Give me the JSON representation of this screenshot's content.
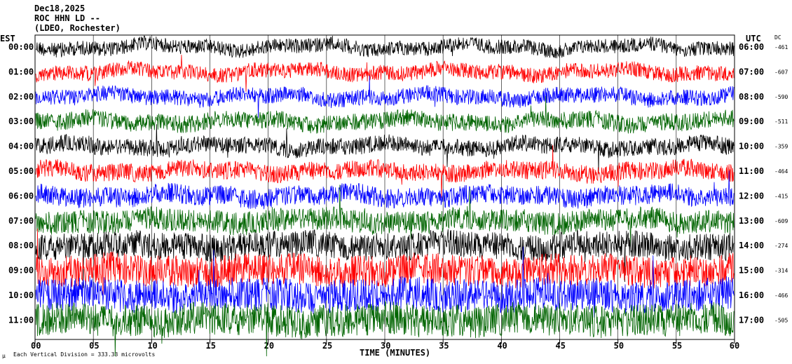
{
  "header": {
    "date": "Dec18,2025",
    "station": "ROC HHN LD --",
    "network": "(LDEO, Rochester)"
  },
  "labels": {
    "left_tz": "EST",
    "right_tz": "UTC",
    "dc": "DC",
    "xlabel": "TIME (MINUTES)",
    "footnote_mark": "µ",
    "footnote": "Each Vertical Division =  333.33 microvolts"
  },
  "chart_data": {
    "type": "line",
    "title": "ROC HHN LD --",
    "xlabel": "TIME (MINUTES)",
    "xlim": [
      0,
      60
    ],
    "x_ticks": [
      "00",
      "05",
      "10",
      "15",
      "20",
      "25",
      "30",
      "35",
      "40",
      "45",
      "50",
      "55",
      "60"
    ],
    "series": [
      {
        "est": "00:00",
        "utc": "06:00",
        "dc": "-461",
        "color": "#000000",
        "noise": 0.3
      },
      {
        "est": "01:00",
        "utc": "07:00",
        "dc": "-607",
        "color": "#ff0000",
        "noise": 0.32
      },
      {
        "est": "02:00",
        "utc": "08:00",
        "dc": "-590",
        "color": "#0000ff",
        "noise": 0.34
      },
      {
        "est": "03:00",
        "utc": "09:00",
        "dc": "-511",
        "color": "#006400",
        "noise": 0.4
      },
      {
        "est": "04:00",
        "utc": "10:00",
        "dc": "-359",
        "color": "#000000",
        "noise": 0.38
      },
      {
        "est": "05:00",
        "utc": "11:00",
        "dc": "-464",
        "color": "#ff0000",
        "noise": 0.42
      },
      {
        "est": "06:00",
        "utc": "12:00",
        "dc": "-415",
        "color": "#0000ff",
        "noise": 0.48
      },
      {
        "est": "07:00",
        "utc": "13:00",
        "dc": "-609",
        "color": "#006400",
        "noise": 0.6
      },
      {
        "est": "08:00",
        "utc": "14:00",
        "dc": "-274",
        "color": "#000000",
        "noise": 0.75
      },
      {
        "est": "09:00",
        "utc": "15:00",
        "dc": "-314",
        "color": "#ff0000",
        "noise": 0.9
      },
      {
        "est": "10:00",
        "utc": "16:00",
        "dc": "-466",
        "color": "#0000ff",
        "noise": 0.95
      },
      {
        "est": "11:00",
        "utc": "17:00",
        "dc": "-505",
        "color": "#006400",
        "noise": 0.95
      }
    ]
  }
}
